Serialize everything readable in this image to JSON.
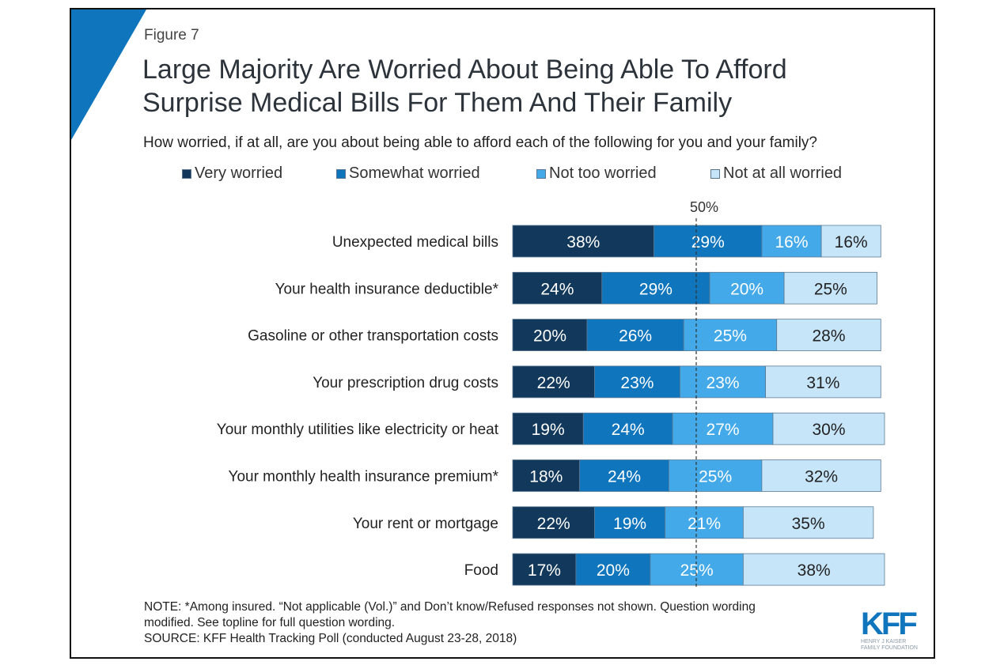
{
  "figure_label": "Figure 7",
  "title_line1": "Large Majority Are Worried About Being Able To Afford",
  "title_line2": "Surprise Medical Bills For Them And Their Family",
  "subtitle": "How worried, if at all, are you about being able to afford each of the following for you and your family?",
  "note_line1": "NOTE: *Among insured. “Not applicable (Vol.)” and Don’t know/Refused responses not shown. Question wording",
  "note_line2": "modified. See topline for full question wording.",
  "source": "SOURCE: KFF Health Tracking Poll (conducted August 23-28, 2018)",
  "logo": {
    "mark": "KFF",
    "line1": "HENRY J KAISER",
    "line2": "FAMILY FOUNDATION"
  },
  "colors": {
    "very": "#12395b",
    "somewhat": "#0f75bc",
    "nottoo": "#43a9e8",
    "notatall": "#c7e5f9",
    "accent": "#0f75bc"
  },
  "chart_data": {
    "type": "bar",
    "orientation": "horizontal-stacked",
    "title": "Large Majority Are Worried About Being Able To Afford Surprise Medical Bills For Them And Their Family",
    "reference_line": {
      "value": 50,
      "label": "50%"
    },
    "categories": [
      "Unexpected medical bills",
      "Your health insurance deductible*",
      "Gasoline or other transportation costs",
      "Your prescription drug costs",
      "Your monthly utilities like electricity or heat",
      "Your monthly health insurance premium*",
      "Your rent or mortgage",
      "Food"
    ],
    "series": [
      {
        "name": "Very worried",
        "values": [
          38,
          24,
          20,
          22,
          19,
          18,
          22,
          17
        ]
      },
      {
        "name": "Somewhat worried",
        "values": [
          29,
          29,
          26,
          23,
          24,
          24,
          19,
          20
        ]
      },
      {
        "name": "Not too worried",
        "values": [
          16,
          20,
          25,
          23,
          27,
          25,
          21,
          25
        ]
      },
      {
        "name": "Not at all worried",
        "values": [
          16,
          25,
          28,
          31,
          30,
          32,
          35,
          38
        ]
      }
    ],
    "legend_position": "top",
    "xlim": [
      0,
      100
    ]
  }
}
